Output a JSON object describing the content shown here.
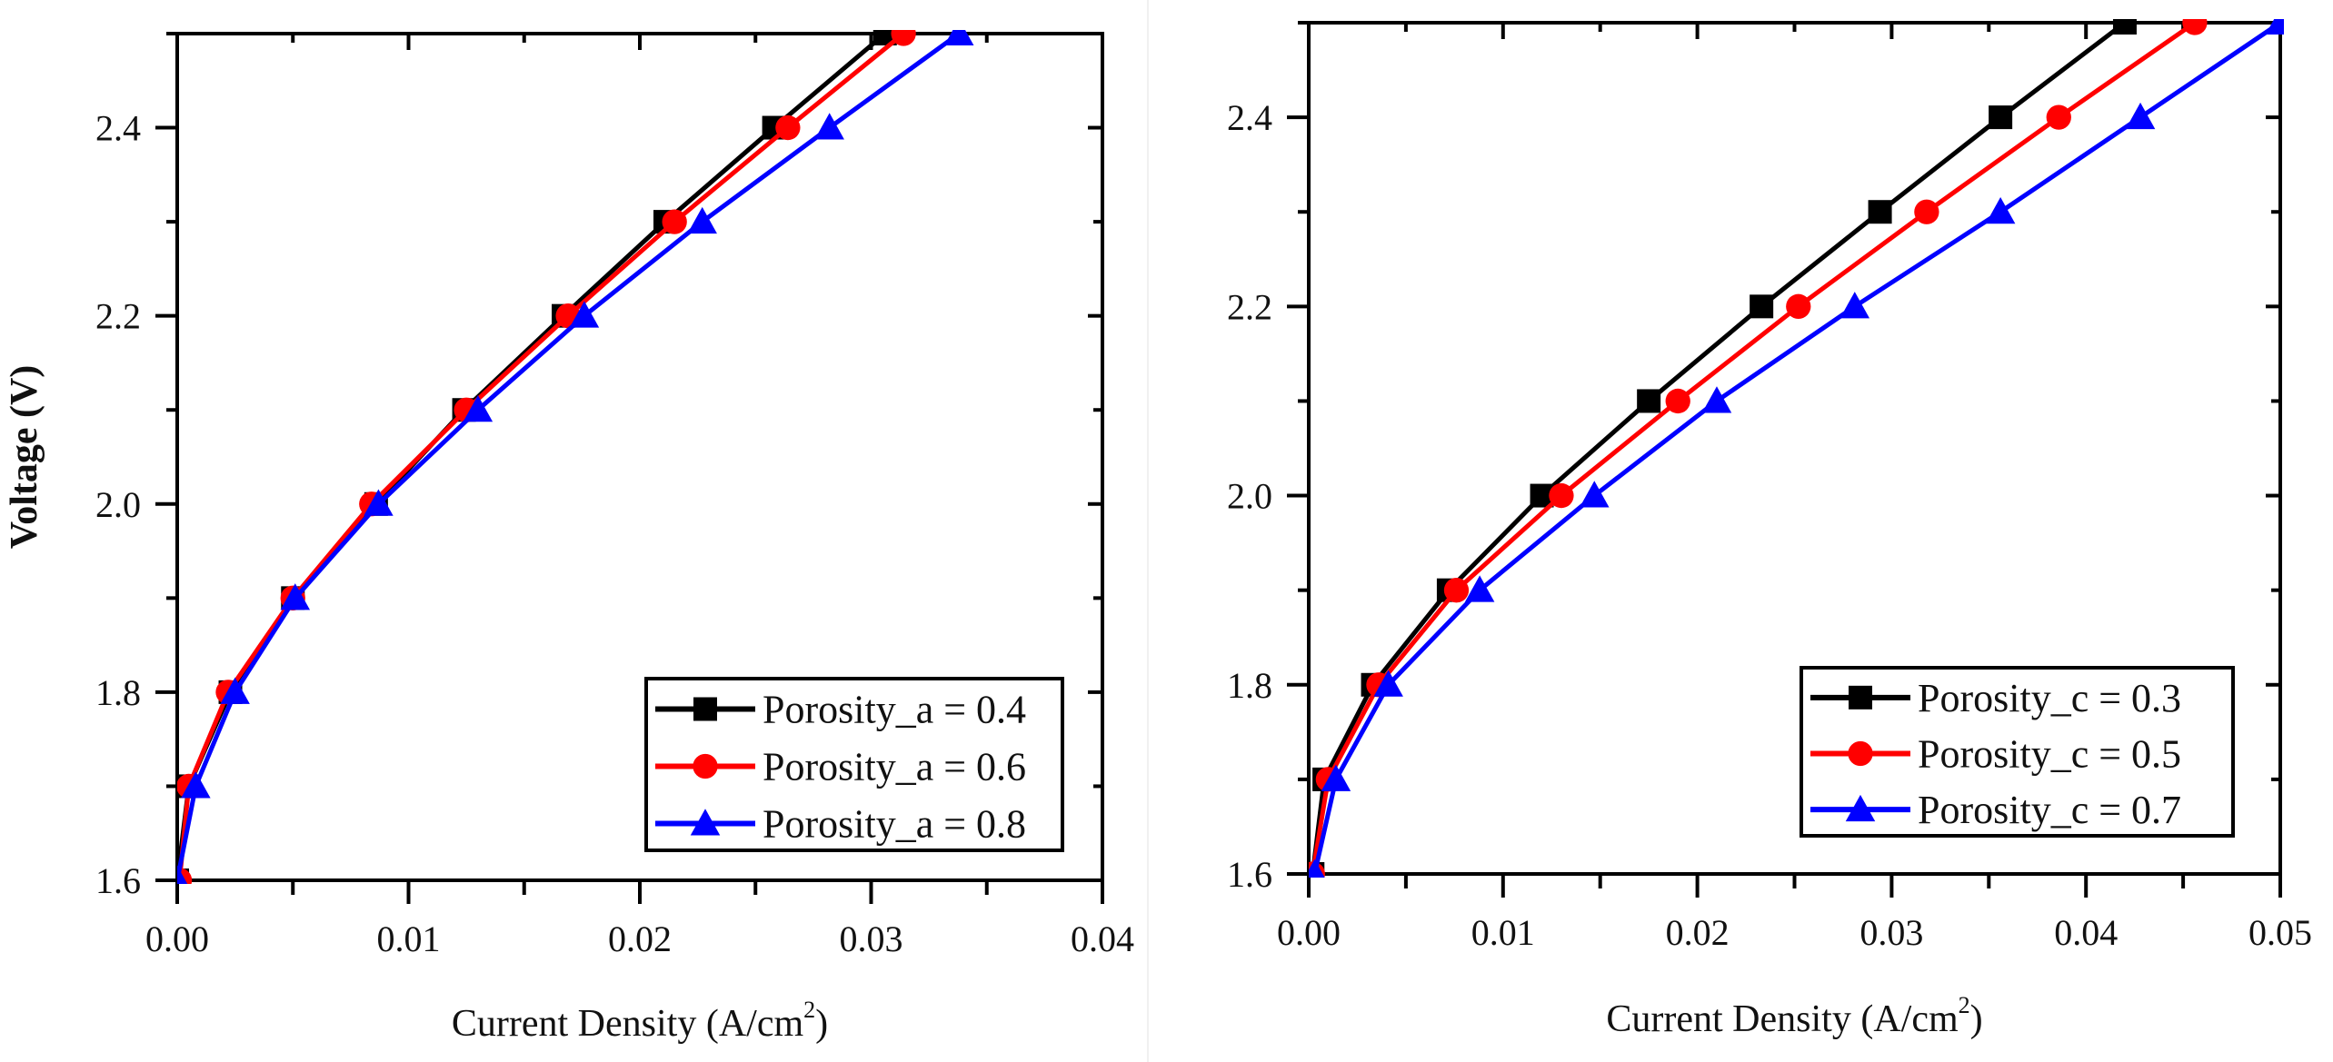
{
  "chart_data": [
    {
      "type": "line",
      "panel": "left",
      "title": "",
      "xlabel": "Current Density (A/cm",
      "xlabel_sup": "2",
      "xlabel_close": ")",
      "ylabel": "Voltage (V)",
      "xlim": [
        0,
        0.04
      ],
      "ylim": [
        1.6,
        2.5
      ],
      "xticks": [
        0.0,
        0.01,
        0.02,
        0.03,
        0.04
      ],
      "xtick_labels": [
        "0.00",
        "0.01",
        "0.02",
        "0.03",
        "0.04"
      ],
      "yticks": [
        1.6,
        1.8,
        2.0,
        2.2,
        2.4
      ],
      "ytick_labels": [
        "1.6",
        "1.8",
        "2.0",
        "2.2",
        "2.4"
      ],
      "grid": false,
      "legend_position": "lower right",
      "series": [
        {
          "name": "Porosity_a = 0.4",
          "color": "#000000",
          "marker": "square",
          "x": [
            0.0,
            0.0005,
            0.0023,
            0.005,
            0.0086,
            0.0124,
            0.0167,
            0.0211,
            0.0258,
            0.0306
          ],
          "y": [
            1.6,
            1.7,
            1.8,
            1.9,
            2.0,
            2.1,
            2.2,
            2.3,
            2.4,
            2.5
          ]
        },
        {
          "name": "Porosity_a = 0.6",
          "color": "#ff0000",
          "marker": "circle",
          "x": [
            0.0001,
            0.0005,
            0.0022,
            0.005,
            0.0084,
            0.0125,
            0.0169,
            0.0215,
            0.0264,
            0.0314
          ],
          "y": [
            1.6,
            1.7,
            1.8,
            1.9,
            2.0,
            2.1,
            2.2,
            2.3,
            2.4,
            2.5
          ]
        },
        {
          "name": "Porosity_a = 0.8",
          "color": "#0000ff",
          "marker": "triangle",
          "x": [
            0.0,
            0.0008,
            0.0025,
            0.0051,
            0.0087,
            0.013,
            0.0176,
            0.0227,
            0.0282,
            0.0338
          ],
          "y": [
            1.6,
            1.7,
            1.8,
            1.9,
            2.0,
            2.1,
            2.2,
            2.3,
            2.4,
            2.5
          ]
        }
      ]
    },
    {
      "type": "line",
      "panel": "right",
      "title": "",
      "xlabel": "Current Density (A/cm",
      "xlabel_sup": "2",
      "xlabel_close": ")",
      "ylabel": "",
      "xlim": [
        0,
        0.05
      ],
      "ylim": [
        1.6,
        2.5
      ],
      "xticks": [
        0.0,
        0.01,
        0.02,
        0.03,
        0.04,
        0.05
      ],
      "xtick_labels": [
        "0.00",
        "0.01",
        "0.02",
        "0.03",
        "0.04",
        "0.05"
      ],
      "yticks": [
        1.6,
        1.8,
        2.0,
        2.2,
        2.4
      ],
      "ytick_labels": [
        "1.6",
        "1.8",
        "2.0",
        "2.2",
        "2.4"
      ],
      "grid": false,
      "legend_position": "lower right",
      "series": [
        {
          "name": "Porosity_c = 0.3",
          "color": "#000000",
          "marker": "square",
          "x": [
            0.0002,
            0.0008,
            0.0033,
            0.0072,
            0.012,
            0.0175,
            0.0233,
            0.0294,
            0.0356,
            0.042
          ],
          "y": [
            1.6,
            1.7,
            1.8,
            1.9,
            2.0,
            2.1,
            2.2,
            2.3,
            2.4,
            2.5
          ]
        },
        {
          "name": "Porosity_c = 0.5",
          "color": "#ff0000",
          "marker": "circle",
          "x": [
            0.0002,
            0.001,
            0.0036,
            0.0076,
            0.013,
            0.019,
            0.0252,
            0.0318,
            0.0386,
            0.0456
          ],
          "y": [
            1.6,
            1.7,
            1.8,
            1.9,
            2.0,
            2.1,
            2.2,
            2.3,
            2.4,
            2.5
          ]
        },
        {
          "name": "Porosity_c = 0.7",
          "color": "#0000ff",
          "marker": "triangle",
          "x": [
            0.0003,
            0.0014,
            0.0041,
            0.0088,
            0.0147,
            0.021,
            0.0281,
            0.0356,
            0.0428,
            0.05
          ],
          "y": [
            1.6,
            1.7,
            1.8,
            1.9,
            2.0,
            2.1,
            2.2,
            2.3,
            2.4,
            2.5
          ]
        }
      ]
    }
  ]
}
